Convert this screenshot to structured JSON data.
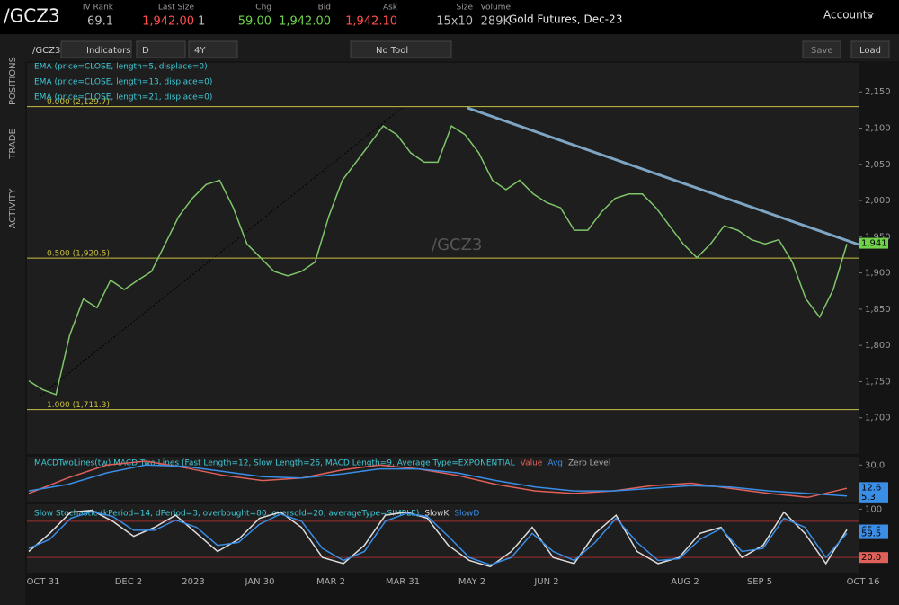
{
  "header": {
    "symbol": "/GCZ3",
    "fields": [
      {
        "label": "IV Rank",
        "value": "69.1"
      },
      {
        "label": "Last Size",
        "value": "1,942.00",
        "extra": "1"
      },
      {
        "label": "Chg",
        "value": "59.00"
      },
      {
        "label": "Bid",
        "value": "1,942.00"
      },
      {
        "label": "Ask",
        "value": "1,942.10"
      },
      {
        "label": "Size",
        "value": "15x10"
      },
      {
        "label": "Volume",
        "value": "289K"
      }
    ],
    "description": "Gold Futures, Dec-23",
    "accounts": "Accounts"
  },
  "toolbar": {
    "symbol": "/GCZ3",
    "indicators": "Indicators",
    "aggregation": "D",
    "period": "4Y",
    "tool": "No Tool",
    "save": "Save",
    "load": "Load"
  },
  "side_tabs": [
    "POSITIONS",
    "TRADE",
    "ACTIVITY"
  ],
  "chart_data": [
    {
      "type": "line",
      "watermark": "/GCZ3",
      "legend": [
        "EMA (price=CLOSE, length=5, displace=0)",
        "EMA (price=CLOSE, length=13, displace=0)",
        "EMA (price=CLOSE, length=21, displace=0)"
      ],
      "x_labels": [
        "OCT 31",
        "DEC 2",
        "2023",
        "JAN 30",
        "MAR 2",
        "MAR 31",
        "MAY 2",
        "JUN 2",
        "AUG 2",
        "SEP 5",
        "OCT 16"
      ],
      "color": "#7fc66a",
      "values": [
        1751,
        1739,
        1732,
        1814,
        1864,
        1852,
        1890,
        1877,
        1890,
        1902,
        1940,
        1978,
        2003,
        2022,
        2028,
        1990,
        1940,
        1921,
        1902,
        1896,
        1902,
        1915,
        1978,
        2028,
        2053,
        2078,
        2103,
        2091,
        2066,
        2053,
        2053,
        2103,
        2091,
        2066,
        2028,
        2015,
        2028,
        2009,
        1997,
        1990,
        1959,
        1959,
        1984,
        2003,
        2009,
        2009,
        1990,
        1965,
        1940,
        1921,
        1940,
        1965,
        1959,
        1946,
        1940,
        1946,
        1915,
        1864,
        1839,
        1877,
        1940
      ],
      "ylim": [
        1650,
        2190
      ],
      "yticks": [
        {
          "value": 2150,
          "label": "2,150"
        },
        {
          "value": 2100,
          "label": "2,100"
        },
        {
          "value": 2050,
          "label": "2,050"
        },
        {
          "value": 2000,
          "label": "2,000"
        },
        {
          "value": 1950,
          "label": "1,950"
        },
        {
          "value": 1900,
          "label": "1,900"
        },
        {
          "value": 1850,
          "label": "1,850"
        },
        {
          "value": 1800,
          "label": "1,800"
        },
        {
          "value": 1750,
          "label": "1,750"
        },
        {
          "value": 1700,
          "label": "1,700"
        }
      ],
      "fib_levels": [
        {
          "level": 2129.7,
          "label": "0.000 (2,129.7)"
        },
        {
          "level": 1920.5,
          "label": "0.500 (1,920.5)"
        },
        {
          "level": 1711.3,
          "label": "1.000 (1,711.3)"
        }
      ],
      "price_labels": [
        {
          "value": 1941,
          "label": "1,941"
        }
      ]
    },
    {
      "type": "line",
      "title": "MACDTwoLines(tw) MACD Two Lines (Fast Length=12, Slow Length=26, MACD Length=9, Average Type=EXPONENTIAL",
      "extra_legend": "Zero Level",
      "series": [
        {
          "name": "Value",
          "color": "#e0605a",
          "values": [
            8,
            20,
            30,
            33,
            28,
            22,
            18,
            20,
            26,
            30,
            27,
            22,
            15,
            10,
            8,
            10,
            14,
            16,
            12,
            8,
            5,
            12
          ]
        },
        {
          "name": "Avg",
          "color": "#3a8ee6",
          "values": [
            10,
            15,
            24,
            30,
            29,
            25,
            21,
            20,
            23,
            27,
            27,
            24,
            18,
            13,
            10,
            10,
            12,
            14,
            13,
            10,
            8,
            6
          ]
        }
      ],
      "ylim": [
        1.7,
        36.5
      ],
      "yticks": [
        {
          "value": 30,
          "label": "30.0"
        }
      ],
      "price_labels": [
        {
          "value": 12.6,
          "label": "12.6"
        },
        {
          "value": 5.3,
          "label": "5.3"
        }
      ]
    },
    {
      "type": "line",
      "title": "Slow Stochastic (kPeriod=14, dPeriod=3, overbought=80, oversold=20, averageType=SIMPLE)",
      "series": [
        {
          "name": "SlowK",
          "color": "#dddddd",
          "values": [
            30,
            60,
            95,
            98,
            80,
            55,
            70,
            90,
            60,
            30,
            50,
            85,
            95,
            70,
            20,
            10,
            40,
            90,
            95,
            85,
            40,
            15,
            5,
            30,
            70,
            20,
            10,
            60,
            90,
            30,
            10,
            20,
            60,
            70,
            20,
            40,
            95,
            60,
            10,
            66
          ]
        },
        {
          "name": "SlowD",
          "color": "#3a8ee6",
          "values": [
            35,
            50,
            85,
            96,
            88,
            65,
            65,
            82,
            70,
            40,
            45,
            75,
            92,
            80,
            35,
            15,
            30,
            80,
            93,
            88,
            55,
            20,
            8,
            20,
            60,
            30,
            15,
            45,
            85,
            45,
            15,
            18,
            50,
            68,
            30,
            35,
            85,
            70,
            20,
            60
          ]
        }
      ],
      "ylim": [
        -5,
        108
      ],
      "yticks": [
        100
      ],
      "levels": [
        80,
        20
      ],
      "price_labels": [
        {
          "value": 65.6,
          "label": "65.6"
        },
        {
          "value": 59.5,
          "label": "59.5"
        },
        {
          "value": 20,
          "label": "20.0"
        }
      ]
    }
  ]
}
